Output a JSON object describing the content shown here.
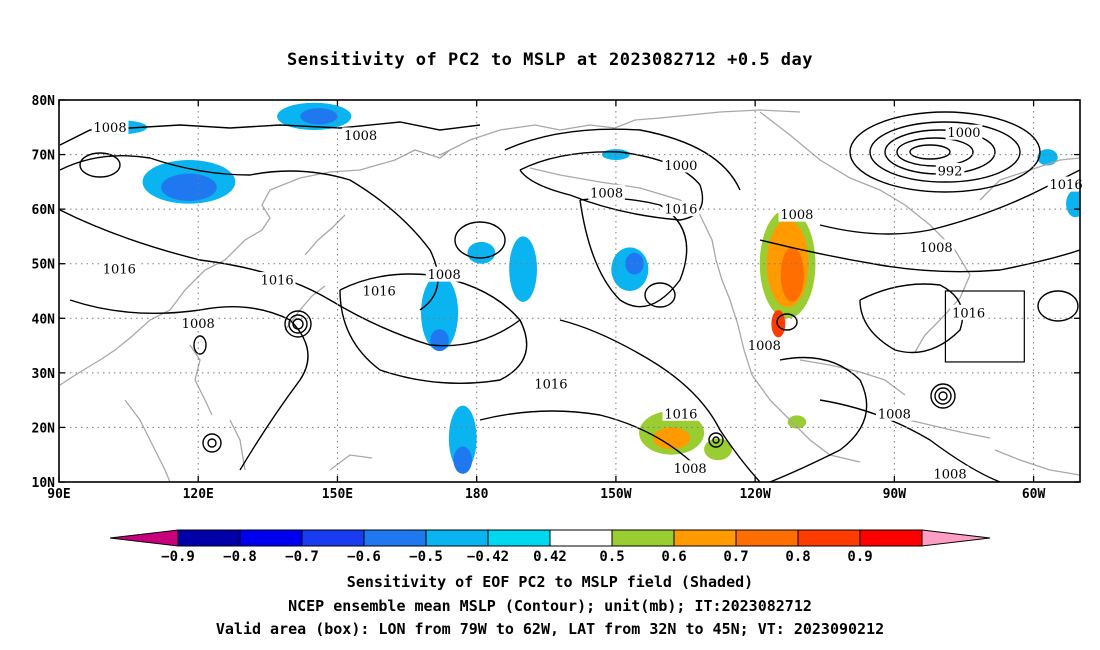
{
  "title": "Sensitivity of PC2 to MSLP at 2023082712 +0.5 day",
  "map": {
    "lon_range": [
      90,
      310
    ],
    "lat_range": [
      10,
      80
    ],
    "lon_ticks": [
      {
        "lon": 90,
        "label": "90E"
      },
      {
        "lon": 120,
        "label": "120E"
      },
      {
        "lon": 150,
        "label": "150E"
      },
      {
        "lon": 180,
        "label": "180"
      },
      {
        "lon": 210,
        "label": "150W"
      },
      {
        "lon": 240,
        "label": "120W"
      },
      {
        "lon": 270,
        "label": "90W"
      },
      {
        "lon": 300,
        "label": "60W"
      }
    ],
    "lat_ticks": [
      {
        "lat": 10,
        "label": "10N"
      },
      {
        "lat": 20,
        "label": "20N"
      },
      {
        "lat": 30,
        "label": "30N"
      },
      {
        "lat": 40,
        "label": "40N"
      },
      {
        "lat": 50,
        "label": "50N"
      },
      {
        "lat": 60,
        "label": "60N"
      },
      {
        "lat": 70,
        "label": "70N"
      },
      {
        "lat": 80,
        "label": "80N"
      }
    ],
    "grid": "dotted",
    "valid_box": {
      "lon_min": 281,
      "lon_max": 298,
      "lat_min": 32,
      "lat_max": 45
    },
    "contour_labels": [
      {
        "text": "1008",
        "lon": 101,
        "lat": 75
      },
      {
        "text": "1008",
        "lon": 155,
        "lat": 73.5
      },
      {
        "text": "1000",
        "lon": 224,
        "lat": 68
      },
      {
        "text": "1008",
        "lon": 208,
        "lat": 63
      },
      {
        "text": "1016",
        "lon": 224,
        "lat": 60
      },
      {
        "text": "1008",
        "lon": 249,
        "lat": 59
      },
      {
        "text": "1000",
        "lon": 285,
        "lat": 74
      },
      {
        "text": "992",
        "lon": 282,
        "lat": 67
      },
      {
        "text": "1016",
        "lon": 307,
        "lat": 64.5
      },
      {
        "text": "1008",
        "lon": 279,
        "lat": 53
      },
      {
        "text": "1016",
        "lon": 103,
        "lat": 49
      },
      {
        "text": "1016",
        "lon": 137,
        "lat": 47
      },
      {
        "text": "1008",
        "lon": 173,
        "lat": 48
      },
      {
        "text": "1016",
        "lon": 159,
        "lat": 45
      },
      {
        "text": "1016",
        "lon": 286,
        "lat": 41
      },
      {
        "text": "1008",
        "lon": 120,
        "lat": 39
      },
      {
        "text": "1008",
        "lon": 242,
        "lat": 35
      },
      {
        "text": "1016",
        "lon": 196,
        "lat": 28
      },
      {
        "text": "1016",
        "lon": 224,
        "lat": 22.5
      },
      {
        "text": "1008",
        "lon": 270,
        "lat": 22.5
      },
      {
        "text": "1008",
        "lon": 226,
        "lat": 12.5
      },
      {
        "text": "1008",
        "lon": 282,
        "lat": 11.5
      }
    ],
    "shading_patches": [
      {
        "lon": 103,
        "lat": 75,
        "rx": 6,
        "ry": 1.3,
        "value": -0.5
      },
      {
        "lon": 118,
        "lat": 65,
        "rx": 10,
        "ry": 4,
        "value": -0.5
      },
      {
        "lon": 118,
        "lat": 64,
        "rx": 6,
        "ry": 2.5,
        "value": -0.6
      },
      {
        "lon": 145,
        "lat": 77,
        "rx": 8,
        "ry": 2.5,
        "value": -0.5
      },
      {
        "lon": 146,
        "lat": 77,
        "rx": 4,
        "ry": 1.5,
        "value": -0.6
      },
      {
        "lon": 172,
        "lat": 41,
        "rx": 4,
        "ry": 7,
        "value": -0.5
      },
      {
        "lon": 172,
        "lat": 36,
        "rx": 2,
        "ry": 2,
        "value": -0.6
      },
      {
        "lon": 181,
        "lat": 52,
        "rx": 3,
        "ry": 2,
        "value": -0.5
      },
      {
        "lon": 190,
        "lat": 49,
        "rx": 3,
        "ry": 6,
        "value": -0.5
      },
      {
        "lon": 177,
        "lat": 18,
        "rx": 3,
        "ry": 6,
        "value": -0.5
      },
      {
        "lon": 177,
        "lat": 14,
        "rx": 2,
        "ry": 2.5,
        "value": -0.6
      },
      {
        "lon": 213,
        "lat": 49,
        "rx": 4,
        "ry": 4,
        "value": -0.5
      },
      {
        "lon": 214,
        "lat": 50,
        "rx": 2,
        "ry": 2,
        "value": -0.6
      },
      {
        "lon": 210,
        "lat": 70,
        "rx": 3,
        "ry": 1,
        "value": -0.5
      },
      {
        "lon": 303,
        "lat": 69.5,
        "rx": 2.2,
        "ry": 1.5,
        "value": -0.5
      },
      {
        "lon": 309,
        "lat": 61,
        "rx": 2,
        "ry": 2.5,
        "value": -0.5
      },
      {
        "lon": 247,
        "lat": 50,
        "rx": 6,
        "ry": 10,
        "value": 0.5
      },
      {
        "lon": 247,
        "lat": 50,
        "rx": 4.5,
        "ry": 8,
        "value": 0.6
      },
      {
        "lon": 248,
        "lat": 48,
        "rx": 2.5,
        "ry": 5,
        "value": 0.7
      },
      {
        "lon": 245,
        "lat": 39,
        "rx": 1.5,
        "ry": 2.5,
        "value": 0.8
      },
      {
        "lon": 222,
        "lat": 19,
        "rx": 7,
        "ry": 4,
        "value": 0.5
      },
      {
        "lon": 222,
        "lat": 18,
        "rx": 4,
        "ry": 2,
        "value": 0.6
      },
      {
        "lon": 232,
        "lat": 16,
        "rx": 3,
        "ry": 2,
        "value": 0.5
      },
      {
        "lon": 249,
        "lat": 21,
        "rx": 2,
        "ry": 1.2,
        "value": 0.5
      }
    ]
  },
  "colorbar": {
    "levels": [
      -0.9,
      -0.8,
      -0.7,
      -0.6,
      -0.5,
      -0.42,
      0.42,
      0.5,
      0.6,
      0.7,
      0.8,
      0.9
    ],
    "labels": [
      "−0.9",
      "−0.8",
      "−0.7",
      "−0.6",
      "−0.5",
      "−0.42",
      "0.42",
      "0.5",
      "0.6",
      "0.7",
      "0.8",
      "0.9"
    ],
    "colors": [
      "#c7007b",
      "#0000a8",
      "#0000f0",
      "#1a3cf0",
      "#1f78f0",
      "#0ab4f0",
      "#00d8f0",
      "#ffffff",
      "#9acd32",
      "#ff9b00",
      "#ff6e00",
      "#ff3c00",
      "#ff0000",
      "#ff9ec4"
    ]
  },
  "captions": {
    "line1": "Sensitivity of EOF PC2 to MSLP field (Shaded)",
    "line2": "NCEP ensemble mean MSLP (Contour); unit(mb); IT:2023082712",
    "line3": "Valid area (box): LON from 79W to 62W, LAT from 32N to 45N; VT: 2023090212"
  }
}
